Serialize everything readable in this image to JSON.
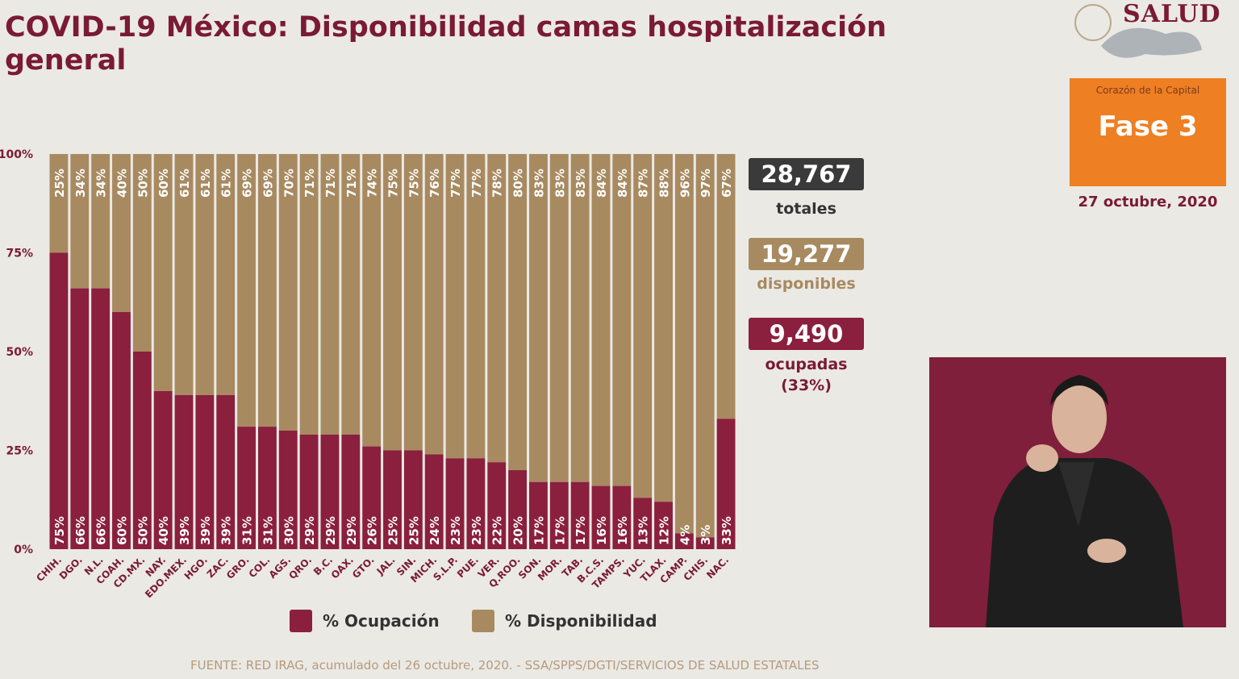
{
  "title": "COVID-19 México: Disponibilidad camas hospitalización general",
  "logo_text": "SALUD",
  "phase": {
    "subtitle": "Corazón de la Capital",
    "label": "Fase 3"
  },
  "date": "27 octubre, 2020",
  "stats": {
    "total_value": "28,767",
    "total_label": "totales",
    "available_value": "19,277",
    "available_label": "disponibles",
    "occupied_value": "9,490",
    "occupied_label": "ocupadas",
    "occupied_pct": "(33%)"
  },
  "source": "FUENTE: RED IRAG, acumulado del 26 octubre, 2020. -  SSA/SPPS/DGTI/SERVICIOS DE SALUD ESTATALES",
  "colors": {
    "ocupacion": "#8b1f3e",
    "disponibilidad": "#a88a61",
    "title": "#7a1a35",
    "stat_dark": "#3a3a3a",
    "phase": "#ee7f22"
  },
  "chart_data": {
    "type": "bar",
    "stacked": true,
    "categories": [
      "CHIH.",
      "DGO.",
      "N.L.",
      "COAH.",
      "CD.MX.",
      "NAY.",
      "EDO.MEX.",
      "HGO.",
      "ZAC.",
      "GRO.",
      "COL.",
      "AGS.",
      "QRO.",
      "B.C.",
      "OAX.",
      "GTO.",
      "JAL.",
      "SIN.",
      "MICH.",
      "S.L.P.",
      "PUE.",
      "VER.",
      "Q.ROO.",
      "SON.",
      "MOR.",
      "TAB.",
      "B.C.S.",
      "TAMPS.",
      "YUC.",
      "TLAX.",
      "CAMP.",
      "CHIS.",
      "NAC."
    ],
    "series": [
      {
        "name": "% Ocupación",
        "values": [
          75,
          66,
          66,
          60,
          50,
          40,
          39,
          39,
          39,
          31,
          31,
          30,
          29,
          29,
          29,
          26,
          25,
          25,
          24,
          23,
          23,
          22,
          20,
          17,
          17,
          17,
          16,
          16,
          13,
          12,
          4,
          3,
          33
        ]
      },
      {
        "name": "% Disponibilidad",
        "values": [
          25,
          34,
          34,
          40,
          50,
          60,
          61,
          61,
          61,
          69,
          69,
          70,
          71,
          71,
          71,
          74,
          75,
          75,
          76,
          77,
          77,
          78,
          80,
          83,
          83,
          83,
          84,
          84,
          87,
          88,
          96,
          97,
          67
        ]
      }
    ],
    "yticks": [
      "0%",
      "25%",
      "50%",
      "75%",
      "100%"
    ],
    "ylim": [
      0,
      100
    ],
    "legend_position": "bottom"
  }
}
